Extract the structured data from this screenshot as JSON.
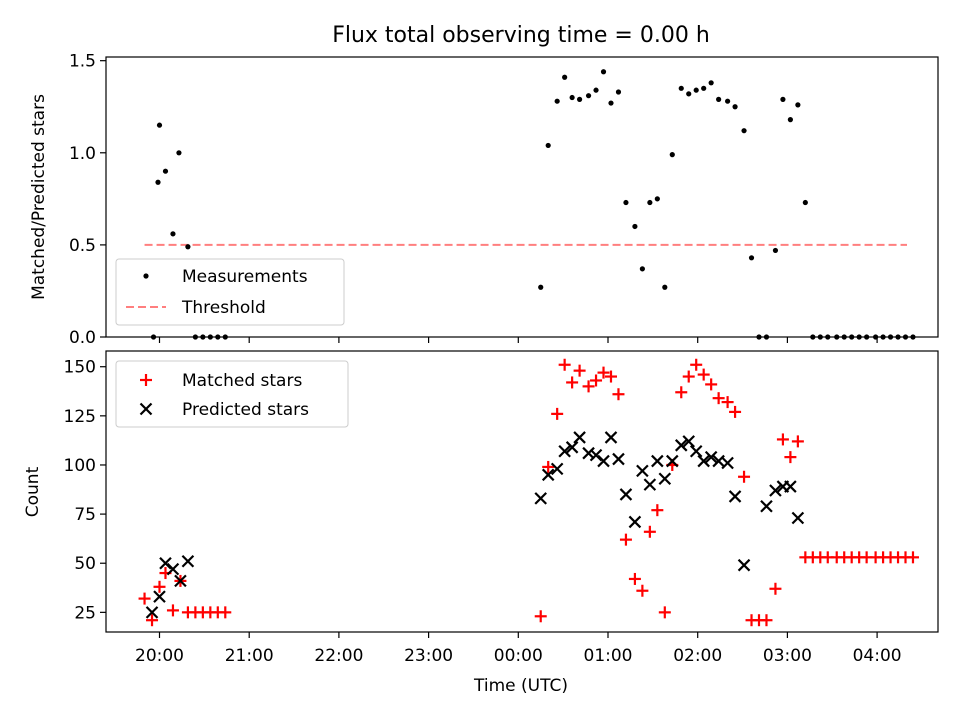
{
  "figure": {
    "title": "Flux total observing time = 0.00 h"
  },
  "colors": {
    "measurements": "#000000",
    "threshold": "#ff7f7f",
    "matched": "#ff0000",
    "predicted": "#000000",
    "axes": "#000000",
    "background": "#ffffff"
  },
  "chart_data": [
    {
      "type": "scatter",
      "ylabel": "Matched/Predicted stars",
      "xlabel": "",
      "x_unit": "hours since 20:00 UTC",
      "ylim": [
        0,
        1.52
      ],
      "yticks": [
        0.0,
        0.5,
        1.0,
        1.5
      ],
      "ytick_labels": [
        "0.0",
        "0.5",
        "1.0",
        "1.5"
      ],
      "grid": false,
      "legend_position": "lower-left",
      "series": [
        {
          "name": "Measurements",
          "marker": "dot",
          "x": [
            "19:59",
            "19:56",
            "20:00",
            "20:04",
            "20:09",
            "20:13",
            "20:19",
            "20:24",
            "20:29",
            "20:34",
            "20:39",
            "20:44",
            "00:15",
            "00:20",
            "00:26",
            "00:31",
            "00:36",
            "00:41",
            "00:47",
            "00:52",
            "00:57",
            "01:02",
            "01:07",
            "01:12",
            "01:18",
            "01:23",
            "01:28",
            "01:33",
            "01:38",
            "01:43",
            "01:49",
            "01:54",
            "01:59",
            "02:04",
            "02:09",
            "02:14",
            "02:20",
            "02:25",
            "02:31",
            "02:36",
            "02:41",
            "02:46",
            "02:52",
            "02:57",
            "03:02",
            "03:07",
            "03:12",
            "03:17",
            "03:22",
            "03:27",
            "03:33",
            "03:38",
            "03:43",
            "03:48",
            "03:53",
            "03:59",
            "04:04",
            "04:09",
            "04:14",
            "04:19",
            "04:24"
          ],
          "y": [
            0.84,
            0.0,
            1.15,
            0.9,
            0.56,
            1.0,
            0.49,
            0.0,
            0.0,
            0.0,
            0.0,
            0.0,
            0.27,
            1.04,
            1.28,
            1.41,
            1.3,
            1.29,
            1.31,
            1.34,
            1.44,
            1.27,
            1.33,
            0.73,
            0.6,
            0.37,
            0.73,
            0.75,
            0.27,
            0.99,
            1.35,
            1.32,
            1.34,
            1.35,
            1.38,
            1.29,
            1.28,
            1.25,
            1.12,
            0.43,
            0.0,
            0.0,
            0.47,
            1.29,
            1.18,
            1.26,
            0.73,
            0.0,
            0.0,
            0.0,
            0.0,
            0.0,
            0.0,
            0.0,
            0.0,
            0.0,
            0.0,
            0.0,
            0.0,
            0.0,
            0.0
          ]
        },
        {
          "name": "Threshold",
          "marker": "dashed-line",
          "x": [
            "19:50",
            "04:20"
          ],
          "y": [
            0.5,
            0.5
          ]
        }
      ]
    },
    {
      "type": "scatter",
      "ylabel": "Count",
      "xlabel": "Time (UTC)",
      "ylim": [
        15,
        158
      ],
      "yticks": [
        25,
        50,
        75,
        100,
        125,
        150
      ],
      "ytick_labels": [
        "25",
        "50",
        "75",
        "100",
        "125",
        "150"
      ],
      "xticks": [
        "20:00",
        "21:00",
        "22:00",
        "23:00",
        "00:00",
        "01:00",
        "02:00",
        "03:00",
        "04:00"
      ],
      "grid": false,
      "legend_position": "upper-left",
      "series": [
        {
          "name": "Matched stars",
          "marker": "plus",
          "x": [
            "19:50",
            "19:55",
            "20:00",
            "20:04",
            "20:09",
            "20:14",
            "20:19",
            "20:24",
            "20:29",
            "20:34",
            "20:39",
            "20:44",
            "00:15",
            "00:20",
            "00:26",
            "00:31",
            "00:36",
            "00:41",
            "00:47",
            "00:52",
            "00:57",
            "01:02",
            "01:07",
            "01:12",
            "01:18",
            "01:23",
            "01:28",
            "01:33",
            "01:38",
            "01:43",
            "01:49",
            "01:54",
            "01:59",
            "02:04",
            "02:09",
            "02:14",
            "02:20",
            "02:25",
            "02:31",
            "02:36",
            "02:41",
            "02:46",
            "02:52",
            "02:57",
            "03:02",
            "03:07",
            "03:12",
            "03:17",
            "03:22",
            "03:27",
            "03:33",
            "03:38",
            "03:43",
            "03:48",
            "03:53",
            "03:59",
            "04:04",
            "04:09",
            "04:14",
            "04:19",
            "04:24"
          ],
          "y": [
            32,
            21,
            38,
            45,
            26,
            41,
            25,
            25,
            25,
            25,
            25,
            25,
            23,
            99,
            126,
            151,
            142,
            148,
            140,
            143,
            147,
            145,
            136,
            62,
            42,
            36,
            66,
            77,
            25,
            100,
            137,
            145,
            151,
            146,
            141,
            134,
            132,
            127,
            94,
            21,
            21,
            21,
            37,
            113,
            104,
            112,
            53,
            53,
            53,
            53,
            53,
            53,
            53,
            53,
            53,
            53,
            53,
            53,
            53,
            53,
            53
          ]
        },
        {
          "name": "Predicted stars",
          "marker": "x",
          "x": [
            "19:55",
            "20:00",
            "20:04",
            "20:09",
            "20:14",
            "20:19",
            "00:15",
            "00:20",
            "00:26",
            "00:31",
            "00:36",
            "00:41",
            "00:47",
            "00:52",
            "00:57",
            "01:02",
            "01:07",
            "01:12",
            "01:18",
            "01:23",
            "01:28",
            "01:33",
            "01:38",
            "01:43",
            "01:49",
            "01:54",
            "01:59",
            "02:04",
            "02:09",
            "02:14",
            "02:20",
            "02:25",
            "02:31",
            "02:46",
            "02:52",
            "02:57",
            "03:02",
            "03:07"
          ],
          "y": [
            25,
            33,
            50,
            47,
            41,
            51,
            83,
            95,
            98,
            107,
            109,
            114,
            106,
            105,
            102,
            114,
            103,
            85,
            71,
            97,
            90,
            102,
            93,
            102,
            110,
            112,
            107,
            102,
            104,
            102,
            101,
            84,
            49,
            79,
            87,
            89,
            89,
            73
          ]
        }
      ]
    }
  ]
}
